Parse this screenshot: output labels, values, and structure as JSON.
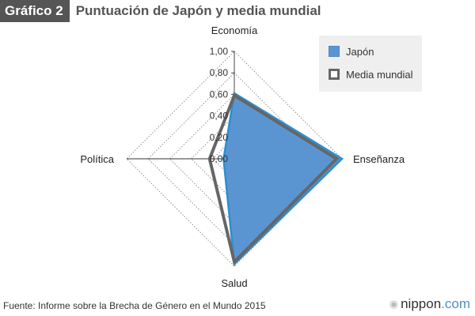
{
  "header": {
    "tag": "Gráfico 2",
    "title": "Puntuación de Japón y media mundial"
  },
  "legend": {
    "items": [
      {
        "label": "Japón",
        "style": "fill"
      },
      {
        "label": "Media mundial",
        "style": "outline"
      }
    ]
  },
  "source": "Fuente: Informe sobre la Brecha de Género en el Mundo 2015",
  "brand": {
    "main": "nippon",
    "suffix": ".com",
    "icon": "nippon-mark-icon"
  },
  "colors": {
    "japan_fill": "#5b95d1",
    "japan_stroke": "#2b8fd0",
    "world_stroke": "#666666",
    "grid": "#777777",
    "title": "#555555"
  },
  "chart_data": {
    "type": "radar",
    "axes": [
      "Economía",
      "Enseñanza",
      "Salud",
      "Política"
    ],
    "ticks": [
      "0,00",
      "0,20",
      "0,40",
      "0,60",
      "0,80",
      "1,00"
    ],
    "range": [
      0,
      1
    ],
    "grid": true,
    "legend_position": "top-right",
    "series": [
      {
        "name": "Japón",
        "values": [
          0.61,
          1.0,
          0.98,
          0.1
        ]
      },
      {
        "name": "Media mundial",
        "values": [
          0.59,
          0.95,
          0.96,
          0.23
        ]
      }
    ]
  }
}
